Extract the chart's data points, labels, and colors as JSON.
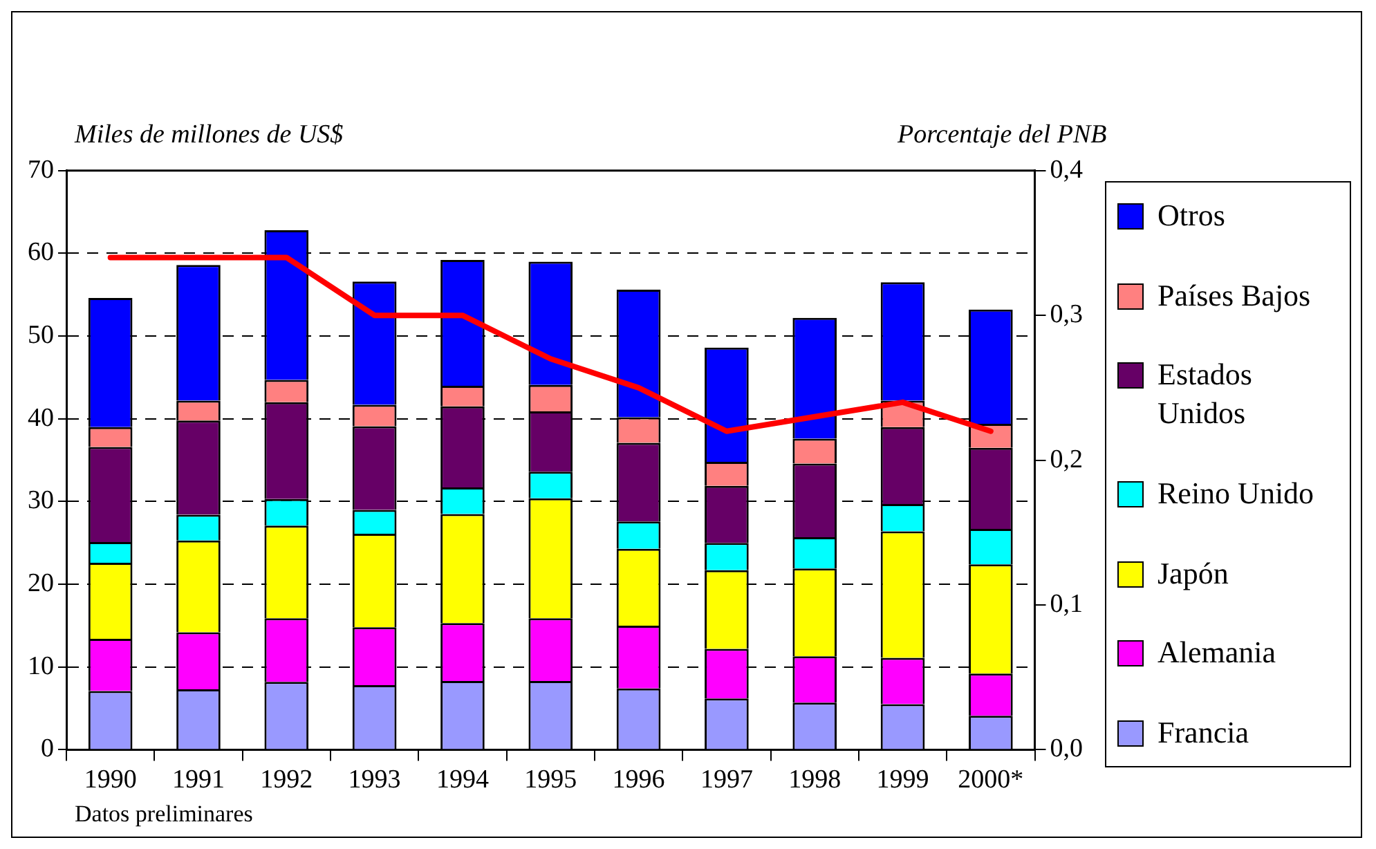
{
  "chart_data": {
    "type": "bar",
    "stacked": true,
    "ylabel": "Miles de millones de US$",
    "y2label": "Porcentaje del PNB",
    "categories": [
      "1990",
      "1991",
      "1992",
      "1993",
      "1994",
      "1995",
      "1996",
      "1997",
      "1998",
      "1999",
      "2000*"
    ],
    "series": [
      {
        "name": "Francia",
        "color": "#9999ff",
        "values": [
          7.1,
          7.3,
          8.2,
          7.8,
          8.3,
          8.3,
          7.4,
          6.2,
          5.7,
          5.5,
          4.1
        ]
      },
      {
        "name": "Alemania",
        "color": "#ff00ff",
        "values": [
          6.3,
          6.9,
          7.7,
          7.0,
          7.0,
          7.6,
          7.6,
          6.0,
          5.6,
          5.6,
          5.1
        ]
      },
      {
        "name": "Japón",
        "color": "#ffff00",
        "values": [
          9.2,
          11.1,
          11.2,
          11.3,
          13.2,
          14.5,
          9.3,
          9.5,
          10.6,
          15.3,
          13.2
        ]
      },
      {
        "name": "Reino Unido",
        "color": "#00ffff",
        "values": [
          2.5,
          3.1,
          3.2,
          2.9,
          3.2,
          3.2,
          3.3,
          3.3,
          3.8,
          3.3,
          4.3
        ]
      },
      {
        "name": "Estados Unidos",
        "color": "#660066",
        "values": [
          11.5,
          11.4,
          11.7,
          10.1,
          9.8,
          7.3,
          9.5,
          6.9,
          8.9,
          9.3,
          9.8
        ]
      },
      {
        "name": "Países Bajos",
        "color": "#ff8080",
        "values": [
          2.4,
          2.4,
          2.7,
          2.6,
          2.5,
          3.2,
          3.1,
          2.9,
          3.0,
          3.2,
          2.9
        ]
      },
      {
        "name": "Otros",
        "color": "#0000ff",
        "values": [
          15.6,
          16.4,
          18.1,
          14.9,
          15.2,
          14.9,
          15.4,
          13.8,
          14.6,
          14.3,
          13.8
        ]
      },
      {
        "type": "line",
        "axis": "y2",
        "color": "#ff0000",
        "values": [
          0.34,
          0.34,
          0.34,
          0.3,
          0.3,
          0.27,
          0.25,
          0.22,
          0.23,
          0.24,
          0.22
        ]
      }
    ],
    "ylim": [
      0,
      70
    ],
    "yticks": [
      0,
      10,
      20,
      30,
      40,
      50,
      60,
      70
    ],
    "y2lim": [
      0,
      0.4
    ],
    "y2ticks": [
      {
        "value": 0,
        "label": "0,0"
      },
      {
        "value": 0.1,
        "label": "0,1"
      },
      {
        "value": 0.2,
        "label": "0,2"
      },
      {
        "value": 0.3,
        "label": "0,3"
      },
      {
        "value": 0.4,
        "label": "0,4"
      }
    ],
    "grid": "y",
    "legend": "right",
    "annotations": [
      "Datos preliminares"
    ]
  }
}
